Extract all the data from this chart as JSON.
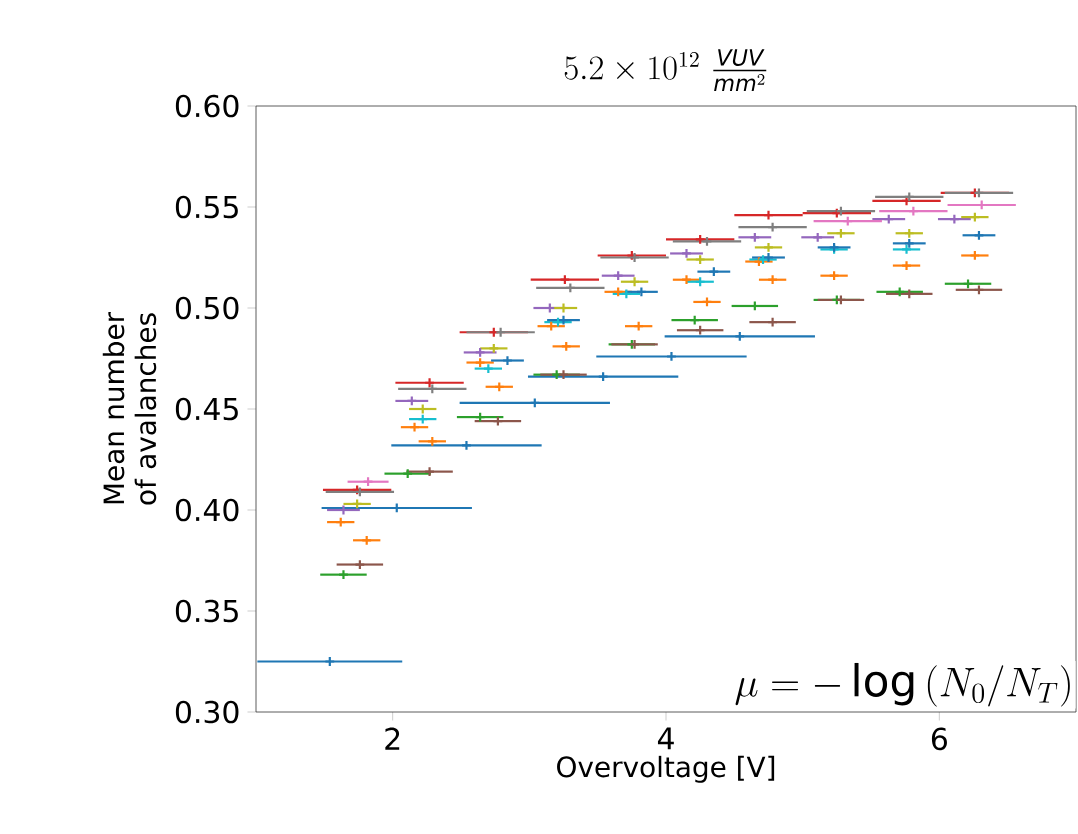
{
  "chart_data": {
    "type": "scatter",
    "title": "5.2 \\times 10^{12}\\ \\frac{\\mathit{VUV}}{\\mathit{mm}^{2}}",
    "xlabel": "Overvoltage [V]",
    "ylabel": "Mean number of avalanches",
    "xlim": [
      1,
      7
    ],
    "ylim": [
      0.3,
      0.6
    ],
    "xticks": [
      2,
      4,
      6
    ],
    "yticks": [
      {
        "value": 0.3,
        "label": "0.30"
      },
      {
        "value": 0.35,
        "label": "0.35"
      },
      {
        "value": 0.4,
        "label": "0.40"
      },
      {
        "value": 0.45,
        "label": "0.45"
      },
      {
        "value": 0.5,
        "label": "0.50"
      },
      {
        "value": 0.55,
        "label": "0.55"
      },
      {
        "value": 0.6,
        "label": "0.60"
      }
    ],
    "grid": false,
    "marker": "cross",
    "annotations": [
      "\\mu = -\\log\\left(N_0/N_T\\right)"
    ],
    "series": [
      {
        "color": "#1f77b4",
        "x": [
          1.54,
          2.03,
          2.54,
          3.04,
          3.54,
          4.04,
          4.54
        ],
        "values": [
          0.325,
          0.401,
          0.432,
          0.453,
          0.466,
          0.476,
          0.486
        ],
        "xerrors": [
          0.53,
          0.55,
          0.55,
          0.55,
          0.55,
          0.55,
          0.55
        ]
      },
      {
        "color": "#ff7f0e",
        "x": [
          1.62,
          2.16,
          2.64,
          3.16,
          3.65,
          4.15,
          4.68,
          5.23,
          5.76,
          6.26
        ],
        "values": [
          0.394,
          0.441,
          0.473,
          0.491,
          0.508,
          0.514,
          0.523,
          0.516,
          0.521,
          0.526
        ],
        "xerrors": [
          0.1,
          0.1,
          0.1,
          0.1,
          0.1,
          0.1,
          0.1,
          0.1,
          0.1,
          0.1
        ]
      },
      {
        "color": "#2ca02c",
        "x": [
          1.64,
          2.11,
          2.64,
          3.2,
          3.75,
          4.21,
          4.65,
          5.25,
          5.71,
          6.21
        ],
        "values": [
          0.368,
          0.418,
          0.446,
          0.467,
          0.482,
          0.494,
          0.501,
          0.504,
          0.508,
          0.512
        ],
        "xerrors": [
          0.17,
          0.17,
          0.17,
          0.17,
          0.17,
          0.17,
          0.17,
          0.17,
          0.17,
          0.17
        ]
      },
      {
        "color": "#d62728",
        "x": [
          1.74,
          2.27,
          2.74,
          3.26,
          3.75,
          4.25,
          4.75,
          5.25,
          5.76,
          6.26
        ],
        "values": [
          0.41,
          0.463,
          0.488,
          0.514,
          0.526,
          0.534,
          0.546,
          0.547,
          0.553,
          0.557
        ],
        "xerrors": [
          0.25,
          0.25,
          0.25,
          0.25,
          0.25,
          0.25,
          0.25,
          0.25,
          0.25,
          0.25
        ]
      },
      {
        "color": "#9467bd",
        "x": [
          1.64,
          2.14,
          2.64,
          3.15,
          3.65,
          4.15,
          4.65,
          5.11,
          5.63,
          6.11
        ],
        "values": [
          0.4,
          0.454,
          0.478,
          0.5,
          0.516,
          0.527,
          0.535,
          0.535,
          0.544,
          0.544
        ],
        "xerrors": [
          0.12,
          0.12,
          0.12,
          0.12,
          0.12,
          0.12,
          0.12,
          0.12,
          0.12,
          0.12
        ]
      },
      {
        "color": "#8c564b",
        "x": [
          1.76,
          2.27,
          2.77,
          3.25,
          3.77,
          4.25,
          4.78,
          5.28,
          5.78,
          6.29
        ],
        "values": [
          0.373,
          0.419,
          0.444,
          0.467,
          0.482,
          0.489,
          0.493,
          0.504,
          0.507,
          0.509
        ],
        "xerrors": [
          0.17,
          0.17,
          0.17,
          0.17,
          0.17,
          0.17,
          0.17,
          0.17,
          0.17,
          0.17
        ]
      },
      {
        "color": "#e377c2",
        "x": [
          1.82,
          5.33,
          5.81,
          6.31
        ],
        "values": [
          0.414,
          0.543,
          0.548,
          0.551
        ],
        "xerrors": [
          0.15,
          0.25,
          0.25,
          0.25
        ]
      },
      {
        "color": "#7f7f7f",
        "x": [
          1.76,
          2.29,
          2.79,
          3.3,
          3.77,
          4.3,
          4.78,
          5.28,
          5.78,
          6.29
        ],
        "values": [
          0.409,
          0.46,
          0.488,
          0.51,
          0.525,
          0.533,
          0.54,
          0.548,
          0.555,
          0.557
        ],
        "xerrors": [
          0.25,
          0.25,
          0.25,
          0.25,
          0.25,
          0.25,
          0.25,
          0.25,
          0.25,
          0.25
        ]
      },
      {
        "color": "#bcbd22",
        "x": [
          1.74,
          2.22,
          2.74,
          3.25,
          3.77,
          4.25,
          4.75,
          5.28,
          5.78,
          6.26
        ],
        "values": [
          0.403,
          0.45,
          0.48,
          0.5,
          0.513,
          0.524,
          0.53,
          0.537,
          0.537,
          0.545
        ],
        "xerrors": [
          0.1,
          0.1,
          0.1,
          0.1,
          0.1,
          0.1,
          0.1,
          0.1,
          0.1,
          0.1
        ]
      },
      {
        "color": "#17becf",
        "x": [
          2.22,
          2.7,
          3.21,
          3.71,
          4.25,
          4.71,
          5.23,
          5.76
        ],
        "values": [
          0.445,
          0.47,
          0.493,
          0.507,
          0.513,
          0.524,
          0.529,
          0.529
        ],
        "xerrors": [
          0.1,
          0.1,
          0.1,
          0.1,
          0.1,
          0.1,
          0.1,
          0.1
        ]
      },
      {
        "color": "#1f77b4",
        "x": [
          2.84,
          3.25,
          3.82,
          4.35,
          4.75,
          5.23,
          5.78,
          6.29
        ],
        "values": [
          0.474,
          0.494,
          0.508,
          0.518,
          0.525,
          0.53,
          0.532,
          0.536
        ],
        "xerrors": [
          0.12,
          0.12,
          0.12,
          0.12,
          0.12,
          0.12,
          0.12,
          0.12
        ]
      },
      {
        "color": "#ff7f0e",
        "x": [
          1.81,
          2.29,
          2.78,
          3.27,
          3.8,
          4.3,
          4.78
        ],
        "values": [
          0.385,
          0.434,
          0.461,
          0.481,
          0.491,
          0.503,
          0.514
        ],
        "xerrors": [
          0.1,
          0.1,
          0.1,
          0.1,
          0.1,
          0.1,
          0.1
        ]
      }
    ]
  }
}
